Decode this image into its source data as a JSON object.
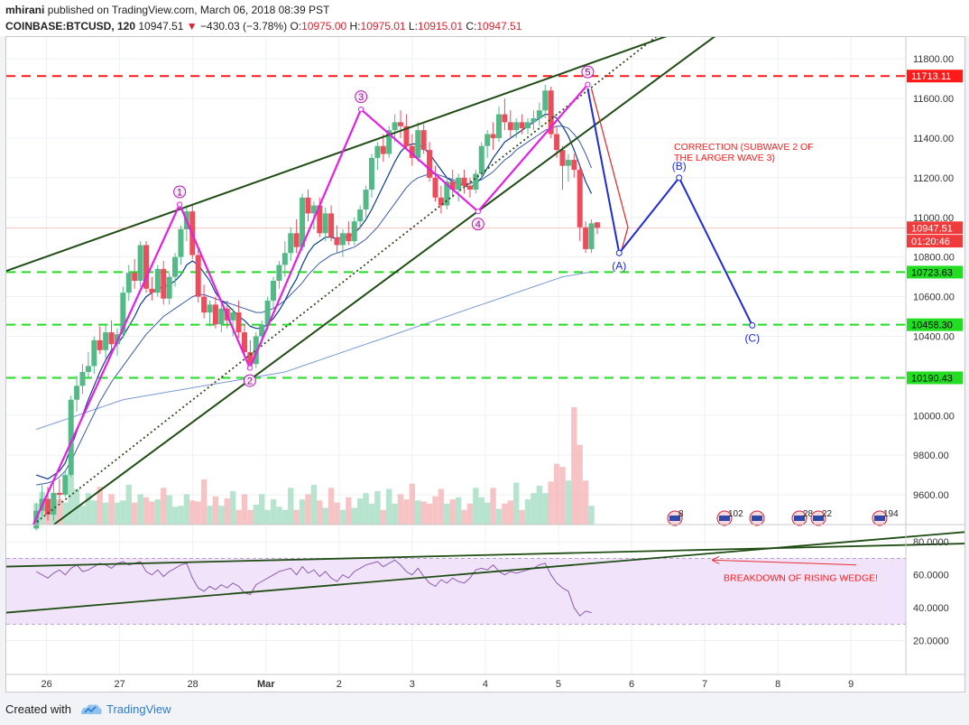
{
  "header": {
    "author": "mhirani",
    "published_text": "published on TradingView.com, March 06, 2018 08:39 PST",
    "symbol": "COINBASE:BTCUSD, 120",
    "last": "10947.51",
    "change": "−430.03 (−3.78%)",
    "o_label": "O:",
    "o_value": "10975.00",
    "h_label": "H:",
    "h_value": "10975.01",
    "l_label": "L:",
    "l_value": "10915.01",
    "c_label": "C:",
    "c_value": "10947.51"
  },
  "footer": {
    "created_with": "Created with",
    "brand": "TradingView"
  },
  "chart_data": {
    "type": "candlestick",
    "price_axis": {
      "ticks": [
        9600,
        9800,
        10000,
        10200,
        10400,
        10600,
        10800,
        11000,
        11200,
        11400,
        11600,
        11800
      ],
      "tick_labels": [
        "9600.00",
        "9800.00",
        "10000.00",
        "10200.00",
        "10400.00",
        "10600.00",
        "10800.00",
        "11000.00",
        "11200.00",
        "11400.00",
        "11600.00",
        "11800.00"
      ],
      "range": [
        9450,
        11910
      ]
    },
    "rsi_axis": {
      "ticks": [
        20,
        40,
        60,
        80
      ],
      "tick_labels": [
        "20.0000",
        "40.0000",
        "60.0000",
        "80.0000"
      ],
      "range": [
        0,
        90
      ],
      "band": [
        30,
        70
      ]
    },
    "time_axis": {
      "labels": [
        "26",
        "27",
        "28",
        "Mar",
        "2",
        "3",
        "4",
        "5",
        "6",
        "7",
        "8",
        "9"
      ],
      "positions_days": [
        0,
        1,
        2,
        3,
        4,
        5,
        6,
        7,
        8,
        9,
        10,
        11
      ],
      "range_days": [
        -0.55,
        11.75
      ]
    },
    "horizontal_levels": [
      {
        "value": 11713.11,
        "label": "11713.11",
        "color": "#ff1a1a",
        "style": "dashed"
      },
      {
        "value": 10723.63,
        "label": "10723.63",
        "color": "#22dd22",
        "style": "dashed"
      },
      {
        "value": 10458.3,
        "label": "10458.30",
        "color": "#22dd22",
        "style": "dashed"
      },
      {
        "value": 10190.43,
        "label": "10190.43",
        "color": "#22dd22",
        "style": "dashed"
      }
    ],
    "price_tags": [
      {
        "value": 10947.51,
        "label": "10947.51",
        "color": "#ef3b3b"
      },
      {
        "value": 10880,
        "label": "01:20:46",
        "color": "#ef3b3b"
      }
    ],
    "elliott_waves": [
      {
        "label": "1",
        "t": 1.82,
        "price": 11065
      },
      {
        "label": "2",
        "t": 2.78,
        "price": 10240
      },
      {
        "label": "3",
        "t": 4.3,
        "price": 11545
      },
      {
        "label": "4",
        "t": 5.9,
        "price": 11030
      },
      {
        "label": "5",
        "t": 7.4,
        "price": 11670
      }
    ],
    "wave_path": [
      {
        "t": -0.18,
        "price": 9450
      },
      {
        "t": 1.82,
        "price": 11065
      },
      {
        "t": 2.78,
        "price": 10240
      },
      {
        "t": 4.3,
        "price": 11545
      },
      {
        "t": 5.9,
        "price": 11030
      },
      {
        "t": 7.4,
        "price": 11670
      }
    ],
    "correction_waves": [
      {
        "label": "(A)",
        "t": 7.83,
        "price": 10820
      },
      {
        "label": "(B)",
        "t": 8.65,
        "price": 11200
      },
      {
        "label": "(C)",
        "t": 9.65,
        "price": 10455
      }
    ],
    "correction_path": [
      {
        "t": 7.4,
        "price": 11650
      },
      {
        "t": 7.83,
        "price": 10820
      },
      {
        "t": 8.65,
        "price": 11200
      },
      {
        "t": 9.65,
        "price": 10455
      }
    ],
    "annotations": [
      {
        "text": "CORRECTION (SUBWAVE 2 OF",
        "color": "#ff1a1a"
      },
      {
        "text": "THE LARGER WAVE 3)",
        "color": "#ff1a1a"
      },
      {
        "text": "BREAKDOWN OF RISING WEDGE!",
        "color": "#ff1a1a"
      }
    ],
    "event_badges": [
      "8",
      "102",
      "28",
      "22",
      "194"
    ],
    "candles": [
      {
        "o": 9430,
        "h": 9560,
        "l": 9420,
        "c": 9520
      },
      {
        "o": 9520,
        "h": 9650,
        "l": 9490,
        "c": 9580
      },
      {
        "o": 9580,
        "h": 9640,
        "l": 9470,
        "c": 9500
      },
      {
        "o": 9500,
        "h": 9660,
        "l": 9470,
        "c": 9610
      },
      {
        "o": 9610,
        "h": 9680,
        "l": 9560,
        "c": 9600
      },
      {
        "o": 9600,
        "h": 9720,
        "l": 9590,
        "c": 9700
      },
      {
        "o": 9700,
        "h": 10100,
        "l": 9690,
        "c": 10080
      },
      {
        "o": 10080,
        "h": 10200,
        "l": 10020,
        "c": 10150
      },
      {
        "o": 10150,
        "h": 10260,
        "l": 10110,
        "c": 10220
      },
      {
        "o": 10220,
        "h": 10320,
        "l": 10190,
        "c": 10250
      },
      {
        "o": 10250,
        "h": 10400,
        "l": 10210,
        "c": 10380
      },
      {
        "o": 10380,
        "h": 10450,
        "l": 10310,
        "c": 10330
      },
      {
        "o": 10330,
        "h": 10460,
        "l": 10290,
        "c": 10420
      },
      {
        "o": 10420,
        "h": 10480,
        "l": 10330,
        "c": 10360
      },
      {
        "o": 10360,
        "h": 10440,
        "l": 10300,
        "c": 10410
      },
      {
        "o": 10410,
        "h": 10650,
        "l": 10390,
        "c": 10620
      },
      {
        "o": 10620,
        "h": 10760,
        "l": 10580,
        "c": 10720
      },
      {
        "o": 10720,
        "h": 10790,
        "l": 10640,
        "c": 10680
      },
      {
        "o": 10680,
        "h": 10880,
        "l": 10650,
        "c": 10860
      },
      {
        "o": 10860,
        "h": 10880,
        "l": 10620,
        "c": 10640
      },
      {
        "o": 10640,
        "h": 10700,
        "l": 10580,
        "c": 10620
      },
      {
        "o": 10620,
        "h": 10760,
        "l": 10600,
        "c": 10740
      },
      {
        "o": 10740,
        "h": 10780,
        "l": 10560,
        "c": 10590
      },
      {
        "o": 10590,
        "h": 10720,
        "l": 10560,
        "c": 10700
      },
      {
        "o": 10700,
        "h": 10820,
        "l": 10650,
        "c": 10800
      },
      {
        "o": 10800,
        "h": 10960,
        "l": 10760,
        "c": 10940
      },
      {
        "o": 10940,
        "h": 11060,
        "l": 10880,
        "c": 11030
      },
      {
        "o": 11030,
        "h": 11070,
        "l": 10790,
        "c": 10810
      },
      {
        "o": 10810,
        "h": 10840,
        "l": 10570,
        "c": 10600
      },
      {
        "o": 10600,
        "h": 10660,
        "l": 10490,
        "c": 10520
      },
      {
        "o": 10520,
        "h": 10580,
        "l": 10450,
        "c": 10560
      },
      {
        "o": 10560,
        "h": 10600,
        "l": 10440,
        "c": 10460
      },
      {
        "o": 10460,
        "h": 10560,
        "l": 10420,
        "c": 10540
      },
      {
        "o": 10540,
        "h": 10580,
        "l": 10440,
        "c": 10480
      },
      {
        "o": 10480,
        "h": 10540,
        "l": 10400,
        "c": 10520
      },
      {
        "o": 10520,
        "h": 10580,
        "l": 10390,
        "c": 10420
      },
      {
        "o": 10420,
        "h": 10460,
        "l": 10300,
        "c": 10320
      },
      {
        "o": 10320,
        "h": 10380,
        "l": 10240,
        "c": 10260
      },
      {
        "o": 10260,
        "h": 10420,
        "l": 10240,
        "c": 10400
      },
      {
        "o": 10400,
        "h": 10480,
        "l": 10360,
        "c": 10460
      },
      {
        "o": 10460,
        "h": 10600,
        "l": 10430,
        "c": 10580
      },
      {
        "o": 10580,
        "h": 10700,
        "l": 10540,
        "c": 10680
      },
      {
        "o": 10680,
        "h": 10780,
        "l": 10640,
        "c": 10760
      },
      {
        "o": 10760,
        "h": 10880,
        "l": 10700,
        "c": 10820
      },
      {
        "o": 10820,
        "h": 10950,
        "l": 10780,
        "c": 10920
      },
      {
        "o": 10920,
        "h": 10990,
        "l": 10820,
        "c": 10850
      },
      {
        "o": 10850,
        "h": 11120,
        "l": 10830,
        "c": 11100
      },
      {
        "o": 11100,
        "h": 11140,
        "l": 10980,
        "c": 11020
      },
      {
        "o": 11020,
        "h": 11080,
        "l": 10940,
        "c": 11060
      },
      {
        "o": 11060,
        "h": 11100,
        "l": 10900,
        "c": 10920
      },
      {
        "o": 10920,
        "h": 11050,
        "l": 10880,
        "c": 11020
      },
      {
        "o": 11020,
        "h": 11060,
        "l": 10880,
        "c": 10900
      },
      {
        "o": 10900,
        "h": 10960,
        "l": 10820,
        "c": 10860
      },
      {
        "o": 10860,
        "h": 10940,
        "l": 10800,
        "c": 10920
      },
      {
        "o": 10920,
        "h": 10980,
        "l": 10860,
        "c": 10880
      },
      {
        "o": 10880,
        "h": 11000,
        "l": 10860,
        "c": 10980
      },
      {
        "o": 10980,
        "h": 11060,
        "l": 10940,
        "c": 11040
      },
      {
        "o": 11040,
        "h": 11160,
        "l": 11000,
        "c": 11140
      },
      {
        "o": 11140,
        "h": 11320,
        "l": 11100,
        "c": 11300
      },
      {
        "o": 11300,
        "h": 11380,
        "l": 11240,
        "c": 11360
      },
      {
        "o": 11360,
        "h": 11420,
        "l": 11280,
        "c": 11320
      },
      {
        "o": 11320,
        "h": 11460,
        "l": 11300,
        "c": 11440
      },
      {
        "o": 11440,
        "h": 11520,
        "l": 11380,
        "c": 11480
      },
      {
        "o": 11480,
        "h": 11540,
        "l": 11400,
        "c": 11460
      },
      {
        "o": 11460,
        "h": 11520,
        "l": 11340,
        "c": 11360
      },
      {
        "o": 11360,
        "h": 11420,
        "l": 11260,
        "c": 11300
      },
      {
        "o": 11300,
        "h": 11480,
        "l": 11280,
        "c": 11440
      },
      {
        "o": 11440,
        "h": 11470,
        "l": 11320,
        "c": 11340
      },
      {
        "o": 11340,
        "h": 11380,
        "l": 11180,
        "c": 11200
      },
      {
        "o": 11200,
        "h": 11260,
        "l": 11080,
        "c": 11100
      },
      {
        "o": 11100,
        "h": 11160,
        "l": 11020,
        "c": 11060
      },
      {
        "o": 11060,
        "h": 11200,
        "l": 11040,
        "c": 11180
      },
      {
        "o": 11180,
        "h": 11240,
        "l": 11100,
        "c": 11140
      },
      {
        "o": 11140,
        "h": 11220,
        "l": 11080,
        "c": 11200
      },
      {
        "o": 11200,
        "h": 11240,
        "l": 11120,
        "c": 11160
      },
      {
        "o": 11160,
        "h": 11200,
        "l": 11100,
        "c": 11140
      },
      {
        "o": 11140,
        "h": 11240,
        "l": 11120,
        "c": 11220
      },
      {
        "o": 11220,
        "h": 11380,
        "l": 11200,
        "c": 11360
      },
      {
        "o": 11360,
        "h": 11440,
        "l": 11300,
        "c": 11420
      },
      {
        "o": 11420,
        "h": 11480,
        "l": 11340,
        "c": 11400
      },
      {
        "o": 11400,
        "h": 11560,
        "l": 11380,
        "c": 11520
      },
      {
        "o": 11520,
        "h": 11600,
        "l": 11440,
        "c": 11480
      },
      {
        "o": 11480,
        "h": 11540,
        "l": 11400,
        "c": 11440
      },
      {
        "o": 11440,
        "h": 11500,
        "l": 11400,
        "c": 11480
      },
      {
        "o": 11480,
        "h": 11520,
        "l": 11420,
        "c": 11450
      },
      {
        "o": 11450,
        "h": 11500,
        "l": 11420,
        "c": 11480
      },
      {
        "o": 11480,
        "h": 11540,
        "l": 11440,
        "c": 11500
      },
      {
        "o": 11500,
        "h": 11580,
        "l": 11460,
        "c": 11540
      },
      {
        "o": 11540,
        "h": 11670,
        "l": 11500,
        "c": 11640
      },
      {
        "o": 11640,
        "h": 11660,
        "l": 11400,
        "c": 11420
      },
      {
        "o": 11420,
        "h": 11460,
        "l": 11300,
        "c": 11340
      },
      {
        "o": 11340,
        "h": 11360,
        "l": 11140,
        "c": 11260
      },
      {
        "o": 11260,
        "h": 11320,
        "l": 11180,
        "c": 11290
      },
      {
        "o": 11290,
        "h": 11320,
        "l": 11200,
        "c": 11240
      },
      {
        "o": 11240,
        "h": 11260,
        "l": 10880,
        "c": 10950
      },
      {
        "o": 10950,
        "h": 10980,
        "l": 10820,
        "c": 10840
      },
      {
        "o": 10840,
        "h": 10990,
        "l": 10820,
        "c": 10970
      },
      {
        "o": 10975,
        "h": 10975,
        "l": 10915,
        "c": 10947
      }
    ],
    "volume": [
      20,
      31,
      16,
      29,
      24,
      21,
      47,
      34,
      18,
      30,
      23,
      36,
      21,
      29,
      21,
      23,
      38,
      21,
      29,
      26,
      22,
      24,
      35,
      28,
      17,
      18,
      29,
      23,
      22,
      43,
      18,
      27,
      18,
      25,
      32,
      14,
      29,
      14,
      19,
      29,
      14,
      24,
      17,
      14,
      35,
      14,
      24,
      29,
      38,
      23,
      16,
      35,
      21,
      14,
      26,
      16,
      25,
      30,
      20,
      32,
      14,
      34,
      20,
      29,
      24,
      39,
      23,
      22,
      20,
      27,
      34,
      20,
      24,
      26,
      14,
      20,
      35,
      26,
      21,
      35,
      15,
      20,
      23,
      40,
      14,
      24,
      30,
      37,
      30,
      41,
      58,
      55,
      42,
      112,
      76,
      42,
      18
    ],
    "rsi": [
      62,
      60,
      58,
      61,
      63,
      60,
      64,
      66,
      62,
      63,
      65,
      67,
      66,
      64,
      67,
      68,
      66,
      67,
      68,
      62,
      60,
      63,
      59,
      62,
      64,
      66,
      67,
      58,
      52,
      50,
      53,
      51,
      54,
      52,
      55,
      53,
      49,
      48,
      54,
      56,
      58,
      60,
      62,
      63,
      64,
      60,
      65,
      61,
      63,
      59,
      62,
      58,
      56,
      60,
      58,
      62,
      64,
      66,
      67,
      68,
      65,
      67,
      69,
      66,
      62,
      60,
      64,
      59,
      55,
      53,
      57,
      55,
      58,
      56,
      55,
      58,
      63,
      64,
      63,
      66,
      62,
      60,
      62,
      61,
      62,
      63,
      64,
      66,
      67,
      60,
      55,
      52,
      50,
      40,
      35,
      38,
      37
    ],
    "sma_fast": [
      9700,
      9690,
      9680,
      9700,
      9720,
      9760,
      9840,
      9920,
      10000,
      10080,
      10150,
      10220,
      10280,
      10330,
      10360,
      10400,
      10450,
      10500,
      10560,
      10600,
      10620,
      10640,
      10650,
      10660,
      10680,
      10710,
      10760,
      10780,
      10760,
      10720,
      10680,
      10620,
      10580,
      10560,
      10530,
      10500,
      10480,
      10450,
      10440,
      10440,
      10460,
      10490,
      10530,
      10580,
      10640,
      10690,
      10760,
      10820,
      10860,
      10880,
      10900,
      10900,
      10890,
      10900,
      10900,
      10920,
      10950,
      10990,
      11040,
      11100,
      11160,
      11220,
      11280,
      11330,
      11360,
      11370,
      11370,
      11350,
      11320,
      11280,
      11240,
      11200,
      11180,
      11170,
      11160,
      11150,
      11170,
      11200,
      11250,
      11300,
      11340,
      11380,
      11400,
      11420,
      11440,
      11460,
      11480,
      11500,
      11520,
      11520,
      11500,
      11460,
      11410,
      11340,
      11260,
      11180,
      11120
    ],
    "sma_slow": [
      9650,
      9655,
      9660,
      9670,
      9690,
      9720,
      9770,
      9830,
      9890,
      9950,
      10010,
      10070,
      10120,
      10170,
      10210,
      10250,
      10290,
      10330,
      10370,
      10410,
      10440,
      10470,
      10500,
      10520,
      10540,
      10560,
      10580,
      10600,
      10610,
      10610,
      10600,
      10590,
      10580,
      10570,
      10560,
      10550,
      10540,
      10530,
      10520,
      10520,
      10530,
      10540,
      10560,
      10580,
      10610,
      10640,
      10670,
      10710,
      10740,
      10770,
      10790,
      10810,
      10820,
      10830,
      10840,
      10850,
      10870,
      10890,
      10920,
      10950,
      10990,
      11030,
      11070,
      11110,
      11150,
      11180,
      11200,
      11210,
      11220,
      11220,
      11210,
      11200,
      11190,
      11180,
      11170,
      11170,
      11180,
      11190,
      11210,
      11230,
      11260,
      11290,
      11310,
      11340,
      11360,
      11380,
      11400,
      11420,
      11440,
      11450,
      11460,
      11460,
      11450,
      11420,
      11380,
      11320,
      11250
    ],
    "sma_long": [
      9930,
      9940,
      9950,
      9960,
      9970,
      9980,
      9990,
      10000,
      10010,
      10020,
      10030,
      10040,
      10050,
      10060,
      10070,
      10080,
      10085,
      10090,
      10095,
      10100,
      10105,
      10110,
      10115,
      10120,
      10125,
      10130,
      10135,
      10140,
      10145,
      10150,
      10155,
      10160,
      10165,
      10170,
      10175,
      10180,
      10185,
      10190,
      10195,
      10200,
      10205,
      10210,
      10215,
      10220,
      10230,
      10240,
      10250,
      10260,
      10270,
      10280,
      10290,
      10300,
      10310,
      10320,
      10330,
      10340,
      10350,
      10360,
      10370,
      10380,
      10390,
      10400,
      10410,
      10420,
      10430,
      10440,
      10450,
      10460,
      10470,
      10480,
      10490,
      10500,
      10510,
      10520,
      10530,
      10540,
      10550,
      10560,
      10570,
      10580,
      10590,
      10600,
      10610,
      10620,
      10630,
      10640,
      10650,
      10660,
      10670,
      10680,
      10690,
      10700,
      10705,
      10710,
      10715,
      10720,
      10725
    ]
  }
}
